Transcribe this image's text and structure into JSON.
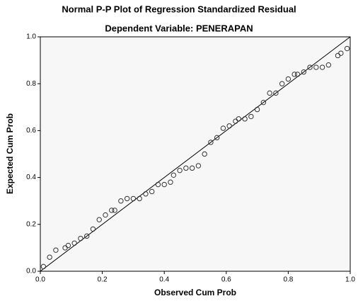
{
  "chart_data": {
    "type": "scatter",
    "title": "Normal P-P Plot of Regression Standardized Residual",
    "subtitle": "Dependent Variable: PENERAPAN",
    "xlabel": "Observed Cum Prob",
    "ylabel": "Expected Cum Prob",
    "xlim": [
      0,
      1
    ],
    "ylim": [
      0,
      1
    ],
    "xticks": [
      {
        "value": 0,
        "label": "0.0"
      },
      0.2,
      0.4,
      0.6,
      0.8,
      {
        "value": 1,
        "label": "1.0"
      }
    ],
    "yticks": [
      {
        "value": 0,
        "label": "0.0"
      },
      0.2,
      0.4,
      0.6,
      0.8,
      {
        "value": 1,
        "label": "1.0"
      }
    ],
    "color": "#333333",
    "x": [
      0.01,
      0.03,
      0.05,
      0.08,
      0.09,
      0.11,
      0.13,
      0.15,
      0.17,
      0.19,
      0.21,
      0.23,
      0.24,
      0.26,
      0.28,
      0.3,
      0.32,
      0.34,
      0.36,
      0.38,
      0.4,
      0.42,
      0.43,
      0.45,
      0.47,
      0.49,
      0.51,
      0.53,
      0.55,
      0.57,
      0.59,
      0.61,
      0.63,
      0.64,
      0.66,
      0.68,
      0.7,
      0.72,
      0.74,
      0.76,
      0.78,
      0.8,
      0.82,
      0.83,
      0.85,
      0.87,
      0.89,
      0.91,
      0.93,
      0.96,
      0.97,
      0.99
    ],
    "values": [
      0.02,
      0.06,
      0.09,
      0.1,
      0.11,
      0.12,
      0.14,
      0.15,
      0.18,
      0.22,
      0.24,
      0.26,
      0.26,
      0.3,
      0.31,
      0.31,
      0.31,
      0.33,
      0.34,
      0.37,
      0.37,
      0.38,
      0.41,
      0.43,
      0.44,
      0.44,
      0.45,
      0.5,
      0.55,
      0.57,
      0.61,
      0.62,
      0.64,
      0.65,
      0.65,
      0.66,
      0.69,
      0.72,
      0.76,
      0.76,
      0.8,
      0.82,
      0.84,
      0.84,
      0.85,
      0.87,
      0.87,
      0.87,
      0.88,
      0.92,
      0.93,
      0.95
    ]
  }
}
